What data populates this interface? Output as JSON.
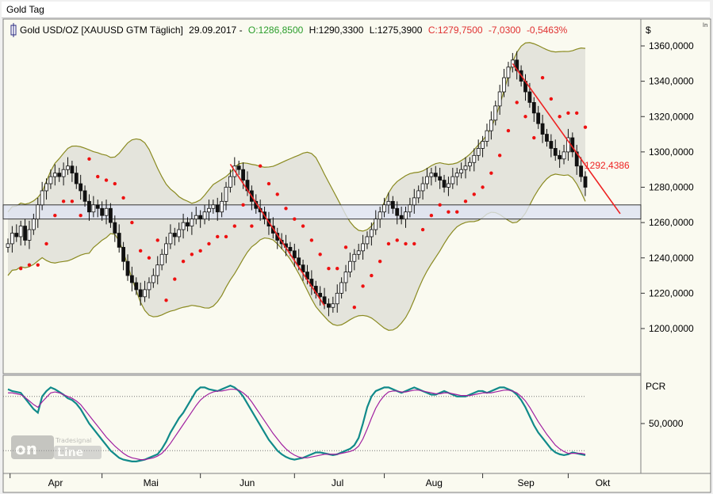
{
  "window": {
    "title": "Gold Tag"
  },
  "header": {
    "instrument": "Gold USD/OZ [XAUUSD GTM  Täglich]",
    "date": "29.09.2017 -",
    "open": "O:1286,8500",
    "high": "H:1290,3300",
    "low": "L:1275,3900",
    "close": "C:1279,7500",
    "change": "-7,0300",
    "change_pct": "-0,5463%"
  },
  "colors": {
    "up": "#2a9d2a",
    "down": "#e03030",
    "band_line": "#8a8a20",
    "band_fill": "#dcdcd6",
    "support_zone": "#dfe3f2",
    "sar": "#ee1111",
    "trendline": "#ee2222",
    "pcr_fast": "#118a8a",
    "pcr_slow": "#a020a0",
    "plot_bg": "#fafaf0"
  },
  "chart_data": [
    {
      "type": "candlestick",
      "title": "Gold USD/OZ [XAUUSD GTM  Täglich]",
      "currency_label": "$",
      "y_ticks": [
        "1360,0000",
        "1340,0000",
        "1320,0000",
        "1300,0000",
        "1280,0000",
        "1260,0000",
        "1240,0000",
        "1220,0000",
        "1200,0000"
      ],
      "ylim": [
        1180,
        1368
      ],
      "x_month_labels": [
        "Apr",
        "Mai",
        "Jun",
        "Jul",
        "Aug",
        "Sep",
        "Okt"
      ],
      "support_zone": [
        1262,
        1270
      ],
      "trendline_label": "1292,4386",
      "close_series": [
        1248,
        1254,
        1252,
        1258,
        1250,
        1256,
        1262,
        1270,
        1278,
        1282,
        1286,
        1288,
        1286,
        1290,
        1292,
        1288,
        1282,
        1278,
        1272,
        1266,
        1270,
        1268,
        1264,
        1268,
        1260,
        1254,
        1246,
        1238,
        1230,
        1226,
        1222,
        1218,
        1222,
        1226,
        1230,
        1236,
        1242,
        1248,
        1254,
        1252,
        1256,
        1260,
        1258,
        1262,
        1264,
        1262,
        1266,
        1268,
        1270,
        1266,
        1272,
        1280,
        1286,
        1292,
        1290,
        1284,
        1278,
        1272,
        1268,
        1266,
        1262,
        1258,
        1254,
        1250,
        1248,
        1246,
        1244,
        1240,
        1236,
        1232,
        1228,
        1224,
        1220,
        1218,
        1214,
        1212,
        1214,
        1220,
        1226,
        1232,
        1238,
        1242,
        1244,
        1248,
        1252,
        1256,
        1262,
        1266,
        1270,
        1272,
        1268,
        1264,
        1262,
        1266,
        1270,
        1274,
        1278,
        1282,
        1286,
        1288,
        1286,
        1284,
        1280,
        1282,
        1286,
        1288,
        1290,
        1292,
        1294,
        1298,
        1302,
        1306,
        1312,
        1318,
        1326,
        1334,
        1342,
        1348,
        1352,
        1346,
        1340,
        1334,
        1328,
        1322,
        1316,
        1310,
        1306,
        1302,
        1298,
        1296,
        1300,
        1308,
        1300,
        1292,
        1286,
        1280
      ]
    },
    {
      "type": "line",
      "title": "PCR",
      "y_ticks": [
        "50,0000"
      ],
      "ylim": [
        0,
        100
      ],
      "series": [
        {
          "name": "",
          "values": [
            88,
            86,
            85,
            84,
            78,
            72,
            66,
            62,
            80,
            86,
            90,
            88,
            85,
            82,
            78,
            76,
            72,
            66,
            58,
            50,
            44,
            38,
            32,
            26,
            20,
            16,
            12,
            10,
            9,
            8,
            8,
            9,
            10,
            12,
            14,
            16,
            22,
            30,
            40,
            48,
            56,
            62,
            70,
            78,
            86,
            90,
            90,
            88,
            87,
            86,
            88,
            90,
            92,
            90,
            86,
            80,
            72,
            64,
            56,
            48,
            40,
            32,
            26,
            20,
            16,
            13,
            11,
            10,
            11,
            12,
            14,
            16,
            18,
            18,
            17,
            16,
            15,
            16,
            18,
            20,
            22,
            26,
            34,
            50,
            68,
            80,
            86,
            88,
            90,
            90,
            88,
            86,
            84,
            86,
            88,
            90,
            88,
            86,
            84,
            82,
            82,
            84,
            86,
            84,
            82,
            80,
            80,
            80,
            82,
            84,
            86,
            86,
            84,
            86,
            88,
            90,
            90,
            88,
            86,
            82,
            76,
            68,
            58,
            48,
            40,
            34,
            28,
            22,
            18,
            16,
            15,
            16,
            18,
            17,
            16,
            15
          ]
        },
        {
          "name": "",
          "values": [
            84,
            84,
            83,
            82,
            79,
            75,
            71,
            68,
            74,
            79,
            84,
            85,
            84,
            82,
            80,
            78,
            75,
            71,
            65,
            59,
            53,
            47,
            41,
            35,
            30,
            25,
            21,
            17,
            14,
            12,
            11,
            10,
            10,
            11,
            12,
            14,
            17,
            22,
            28,
            35,
            42,
            49,
            56,
            63,
            70,
            76,
            80,
            83,
            85,
            86,
            86,
            87,
            88,
            88,
            87,
            84,
            80,
            74,
            67,
            60,
            53,
            46,
            39,
            33,
            27,
            22,
            18,
            15,
            13,
            12,
            12,
            13,
            14,
            15,
            16,
            16,
            16,
            16,
            17,
            18,
            19,
            21,
            25,
            33,
            44,
            56,
            67,
            75,
            81,
            85,
            86,
            86,
            85,
            85,
            86,
            87,
            87,
            86,
            85,
            84,
            83,
            83,
            84,
            84,
            83,
            82,
            81,
            81,
            81,
            82,
            83,
            84,
            84,
            84,
            85,
            86,
            87,
            87,
            86,
            84,
            80,
            75,
            68,
            60,
            52,
            45,
            38,
            32,
            26,
            22,
            19,
            17,
            17,
            17,
            17,
            16
          ]
        }
      ]
    }
  ]
}
